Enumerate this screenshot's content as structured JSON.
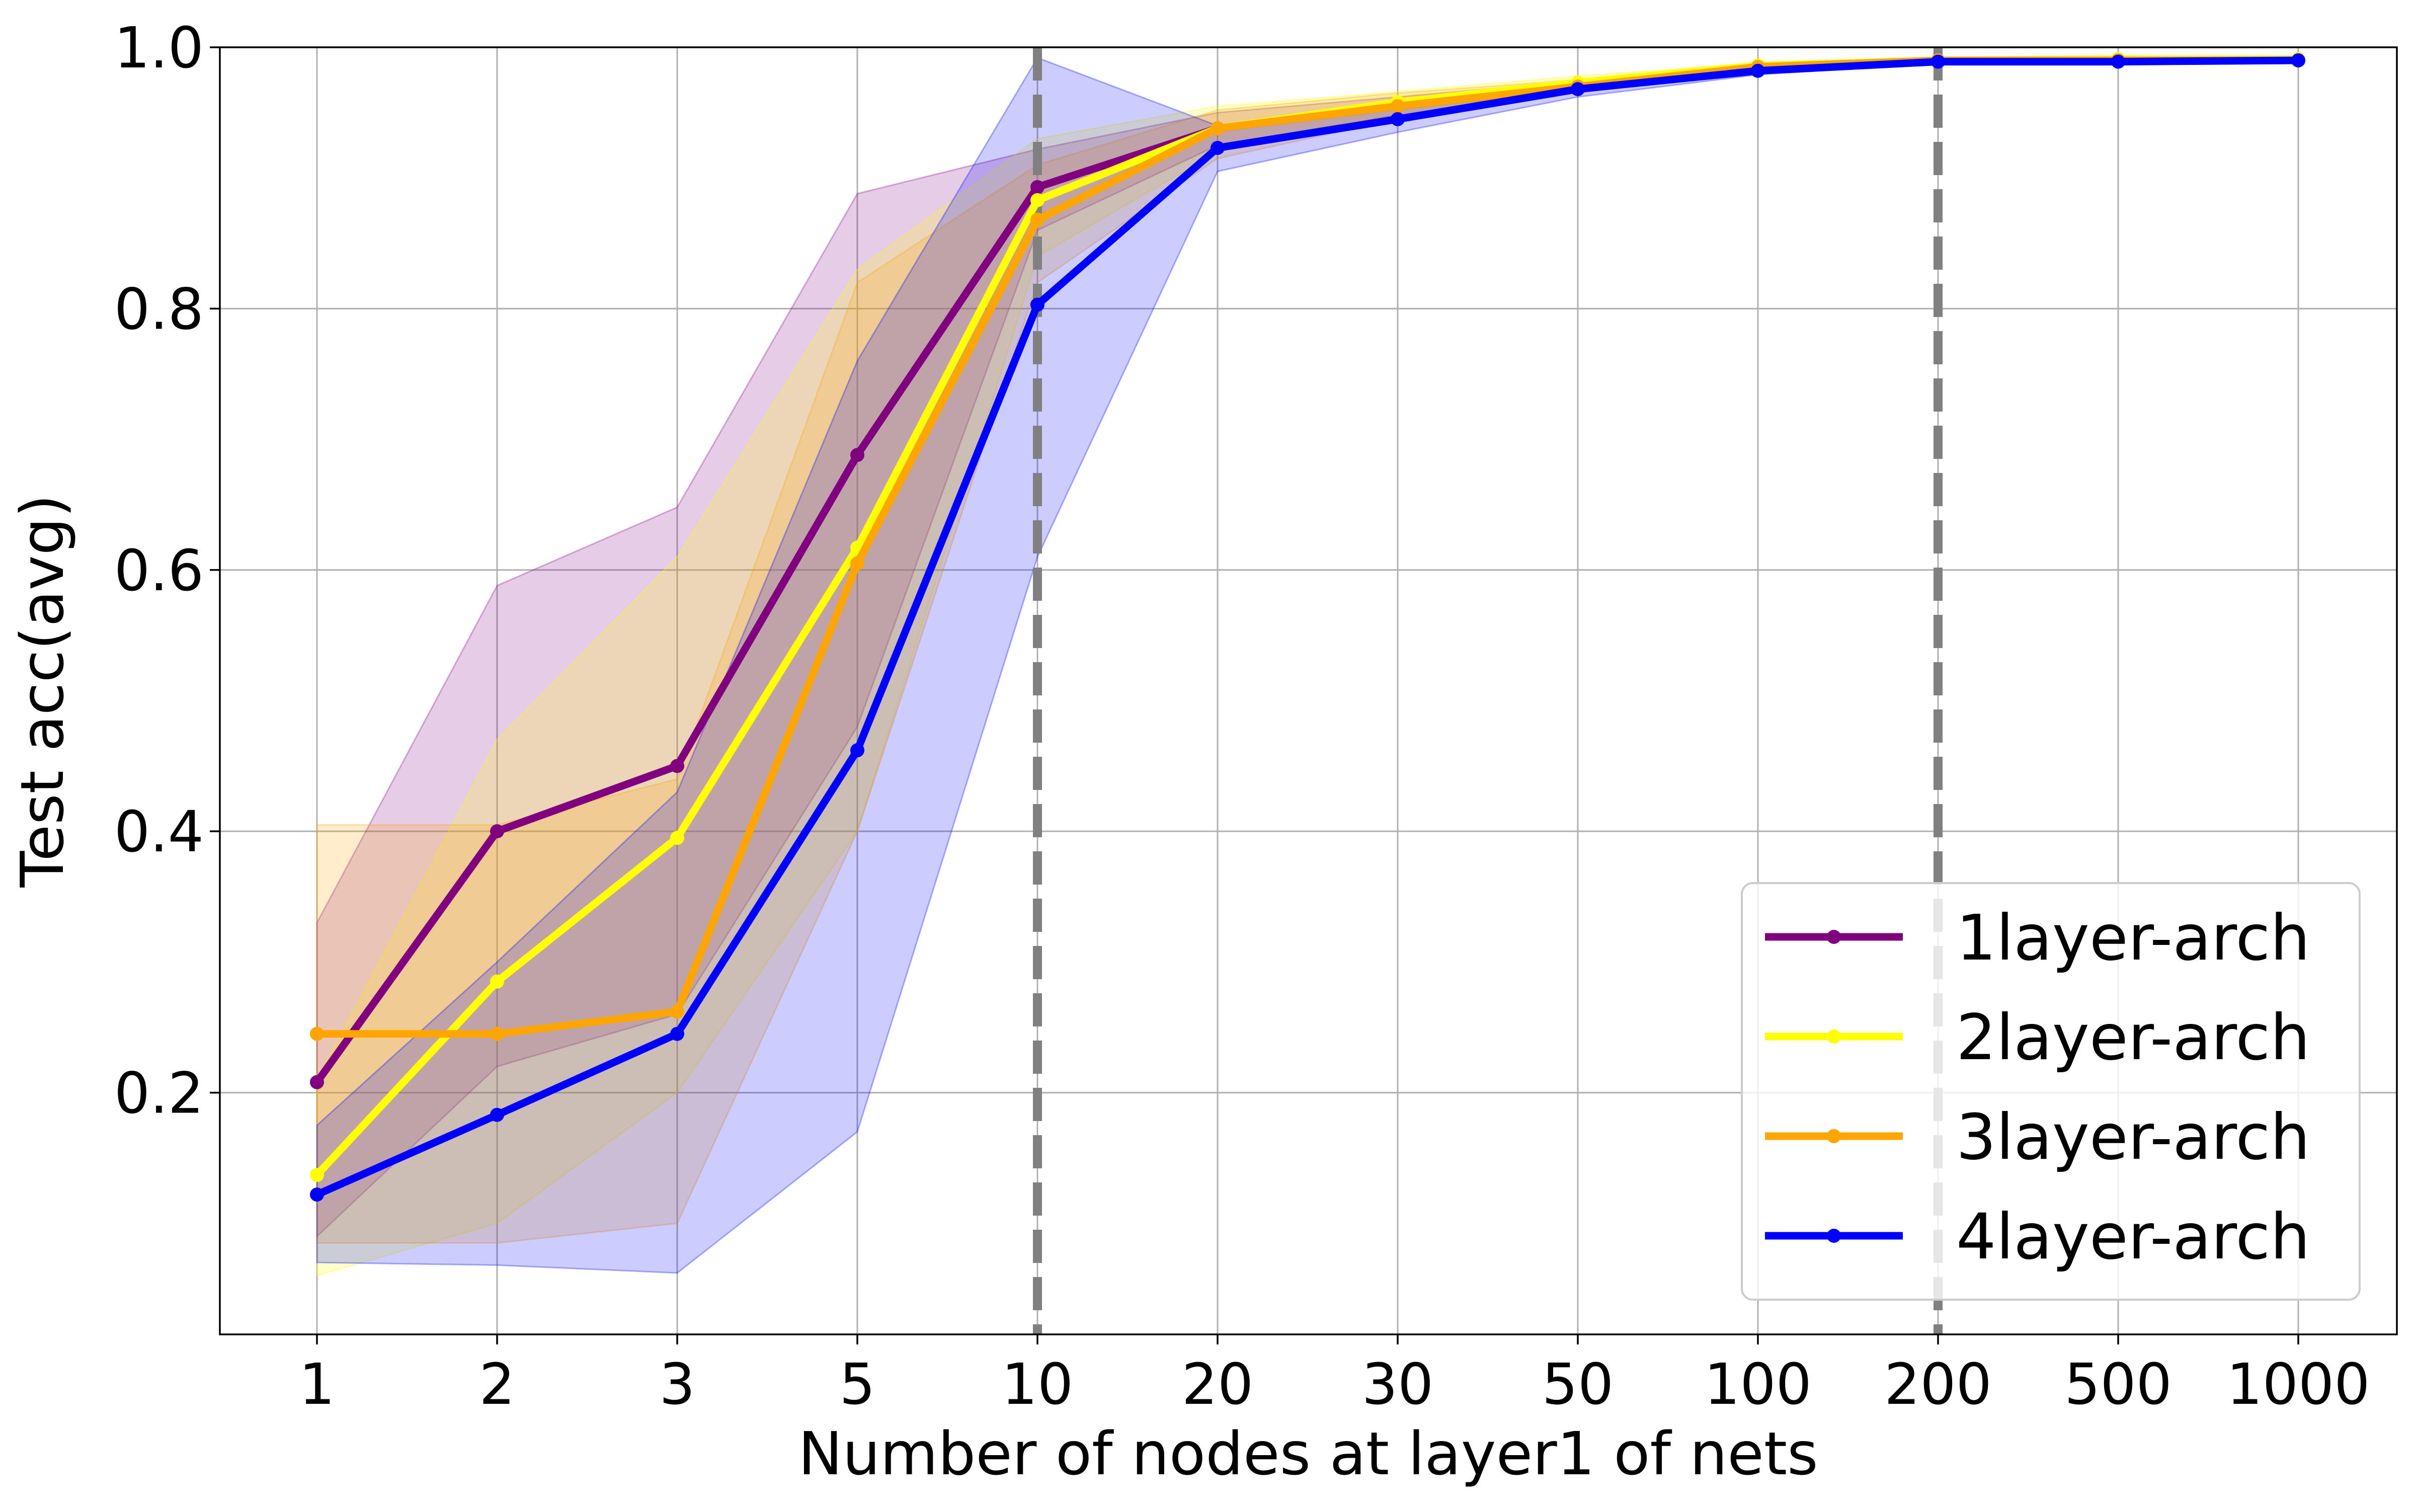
{
  "chart_data": {
    "type": "line",
    "title": "",
    "xlabel": "Number of nodes at layer1 of nets",
    "ylabel": "Test acc(avg)",
    "categories": [
      "1",
      "2",
      "3",
      "5",
      "10",
      "20",
      "30",
      "50",
      "100",
      "200",
      "500",
      "1000"
    ],
    "ylim": [
      0.015,
      1.0
    ],
    "yticks": [
      "0.2",
      "0.4",
      "0.6",
      "0.8",
      "1.0"
    ],
    "grid": true,
    "legend_position": "lower-right",
    "vertical_markers": [
      "10",
      "200"
    ],
    "vertical_marker_color": "#808080",
    "series": [
      {
        "name": "1layer-arch",
        "color": "#800080",
        "values": [
          0.208,
          0.4,
          0.45,
          0.688,
          0.893,
          0.938,
          0.955,
          0.97,
          0.983,
          0.99,
          0.99,
          0.99
        ],
        "lower": [
          0.09,
          0.22,
          0.26,
          0.48,
          0.86,
          0.925,
          0.948,
          0.966,
          0.981,
          0.989,
          0.989,
          0.989
        ],
        "upper": [
          0.33,
          0.588,
          0.648,
          0.888,
          0.922,
          0.95,
          0.962,
          0.974,
          0.985,
          0.991,
          0.991,
          0.991
        ]
      },
      {
        "name": "2layer-arch",
        "color": "#ffff00",
        "values": [
          0.137,
          0.285,
          0.395,
          0.617,
          0.883,
          0.938,
          0.958,
          0.973,
          0.986,
          0.99,
          0.991,
          0.991
        ],
        "lower": [
          0.06,
          0.1,
          0.2,
          0.4,
          0.84,
          0.92,
          0.95,
          0.968,
          0.984,
          0.989,
          0.99,
          0.99
        ],
        "upper": [
          0.21,
          0.47,
          0.61,
          0.83,
          0.93,
          0.955,
          0.966,
          0.978,
          0.988,
          0.991,
          0.992,
          0.992
        ]
      },
      {
        "name": "3layer-arch",
        "color": "#ffa500",
        "values": [
          0.245,
          0.245,
          0.262,
          0.605,
          0.868,
          0.938,
          0.955,
          0.97,
          0.985,
          0.99,
          0.99,
          0.99
        ],
        "lower": [
          0.085,
          0.085,
          0.1,
          0.4,
          0.82,
          0.915,
          0.945,
          0.965,
          0.983,
          0.989,
          0.989,
          0.989
        ],
        "upper": [
          0.405,
          0.405,
          0.44,
          0.82,
          0.91,
          0.952,
          0.965,
          0.975,
          0.987,
          0.991,
          0.991,
          0.991
        ]
      },
      {
        "name": "4layer-arch",
        "color": "#0000ff",
        "values": [
          0.122,
          0.183,
          0.245,
          0.462,
          0.803,
          0.923,
          0.945,
          0.968,
          0.982,
          0.989,
          0.989,
          0.99
        ],
        "lower": [
          0.07,
          0.068,
          0.062,
          0.17,
          0.61,
          0.905,
          0.935,
          0.962,
          0.979,
          0.988,
          0.988,
          0.989
        ],
        "upper": [
          0.175,
          0.3,
          0.43,
          0.76,
          0.992,
          0.94,
          0.955,
          0.973,
          0.985,
          0.99,
          0.99,
          0.991
        ]
      }
    ]
  }
}
